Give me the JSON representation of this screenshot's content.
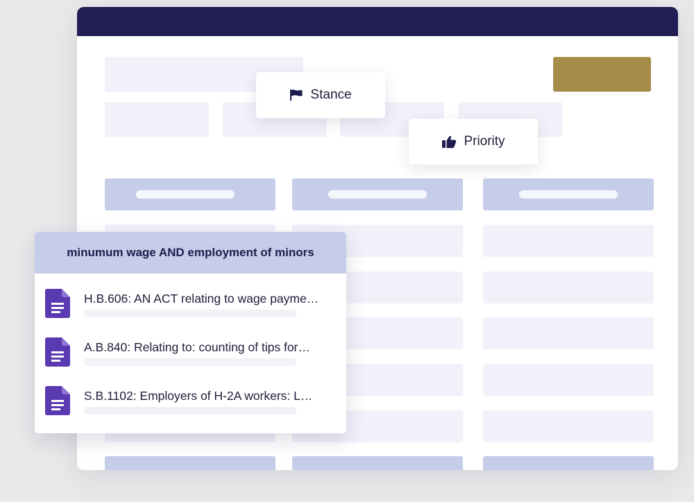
{
  "chips": {
    "stance": {
      "label": "Stance",
      "icon": "flag-icon"
    },
    "priority": {
      "label": "Priority",
      "icon": "thumbs-up-icon"
    }
  },
  "results": {
    "query": "minumum wage AND employment of minors",
    "items": [
      {
        "title": "H.B.606: AN ACT relating to wage payme…",
        "icon": "document-icon"
      },
      {
        "title": "A.B.840: Relating to: counting of tips for…",
        "icon": "document-icon"
      },
      {
        "title": "S.B.1102: Employers of H-2A workers: L…",
        "icon": "document-icon"
      }
    ]
  },
  "colors": {
    "titlebar": "#211e55",
    "accent_button": "#a58c48",
    "table_header": "#c6cde9",
    "document_icon": "#5a3ab0"
  }
}
